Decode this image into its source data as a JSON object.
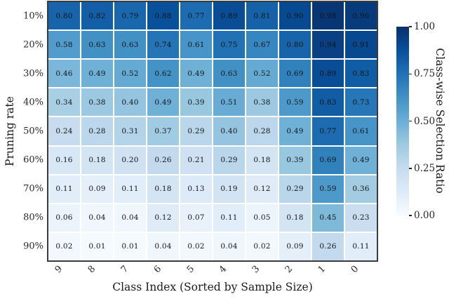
{
  "chart_data": {
    "type": "heatmap",
    "title": "",
    "xlabel": "Class Index (Sorted by Sample Size)",
    "ylabel": "Pruning rate",
    "colorbar_label": "Class-wise Selection Ratio",
    "x_categories": [
      "9",
      "8",
      "7",
      "6",
      "5",
      "4",
      "3",
      "2",
      "1",
      "0"
    ],
    "y_categories": [
      "10%",
      "20%",
      "30%",
      "40%",
      "50%",
      "60%",
      "70%",
      "80%",
      "90%"
    ],
    "values": [
      [
        0.8,
        0.82,
        0.79,
        0.88,
        0.77,
        0.89,
        0.81,
        0.9,
        0.98,
        0.96
      ],
      [
        0.58,
        0.63,
        0.63,
        0.74,
        0.61,
        0.75,
        0.67,
        0.8,
        0.94,
        0.91
      ],
      [
        0.46,
        0.49,
        0.52,
        0.62,
        0.49,
        0.63,
        0.52,
        0.69,
        0.89,
        0.83
      ],
      [
        0.34,
        0.38,
        0.4,
        0.49,
        0.39,
        0.51,
        0.38,
        0.59,
        0.83,
        0.73
      ],
      [
        0.24,
        0.28,
        0.31,
        0.37,
        0.29,
        0.4,
        0.28,
        0.49,
        0.77,
        0.61
      ],
      [
        0.16,
        0.18,
        0.2,
        0.26,
        0.21,
        0.29,
        0.18,
        0.39,
        0.69,
        0.49
      ],
      [
        0.11,
        0.09,
        0.11,
        0.18,
        0.13,
        0.19,
        0.12,
        0.29,
        0.59,
        0.36
      ],
      [
        0.06,
        0.04,
        0.04,
        0.12,
        0.07,
        0.11,
        0.05,
        0.18,
        0.45,
        0.23
      ],
      [
        0.02,
        0.01,
        0.01,
        0.04,
        0.02,
        0.04,
        0.02,
        0.09,
        0.26,
        0.11
      ]
    ],
    "vmin": 0.0,
    "vmax": 1.0,
    "colorbar_ticks": [
      1.0,
      0.75,
      0.5,
      0.25,
      0.0
    ],
    "colormap": "Blues",
    "colormap_stops": [
      "#f7fbff",
      "#deebf7",
      "#c6dbef",
      "#9ecae1",
      "#6baed6",
      "#4292c6",
      "#2171b5",
      "#08519c",
      "#08306b"
    ],
    "grid_line_color": "#ffffff",
    "border_color": "#3b3b3b",
    "annotation_color": "#151515",
    "annotation_format_decimals": 2
  }
}
